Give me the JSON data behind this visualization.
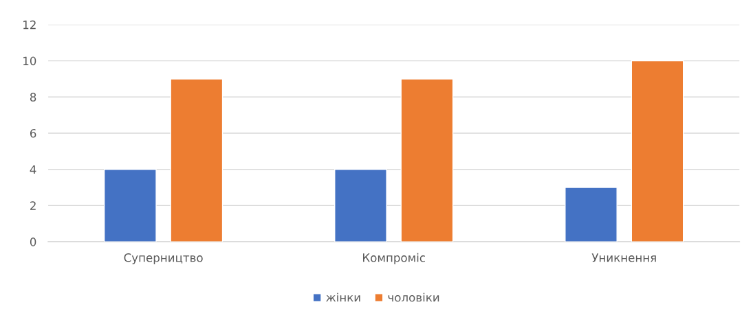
{
  "chart_data": {
    "type": "bar",
    "categories": [
      "Суперництво",
      "Компроміс",
      "Уникнення"
    ],
    "series": [
      {
        "name": "жінки",
        "color": "#4472c4",
        "values": [
          4,
          4,
          3
        ]
      },
      {
        "name": "чоловіки",
        "color": "#ed7d31",
        "values": [
          9,
          9,
          10
        ]
      }
    ],
    "ylim": [
      0,
      12
    ],
    "yticks": [
      0,
      2,
      4,
      6,
      8,
      10,
      12
    ],
    "grid": "y",
    "legend": "bottom"
  }
}
